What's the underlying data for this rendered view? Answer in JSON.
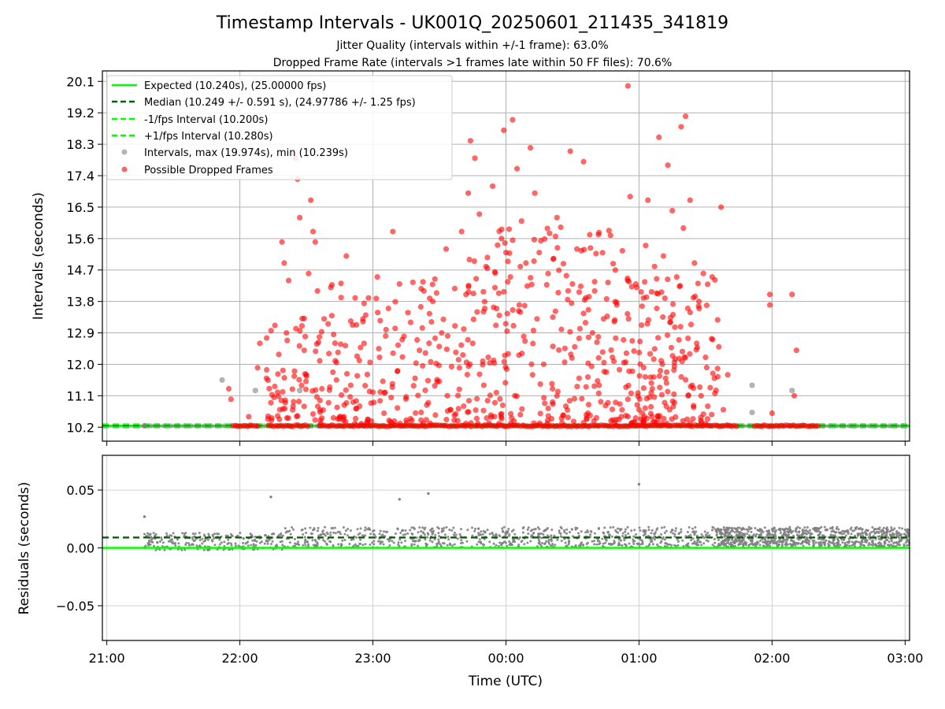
{
  "figure": {
    "title": "Timestamp Intervals - UK001Q_20250601_211435_341819",
    "subtitle_1": "Jitter Quality (intervals within +/-1 frame): 63.0%",
    "subtitle_2": "Dropped Frame Rate (intervals >1 frames late within 50 FF files): 70.6%",
    "colors": {
      "expected": "#00ff00",
      "median": "#006400",
      "interval_points": "#808080",
      "dropped_points": "#ff0000",
      "grid": "#b0b0b0"
    }
  },
  "chart_data": [
    {
      "type": "scatter",
      "name": "intervals",
      "ylabel": "Intervals (seconds)",
      "xlim": [
        "20:58",
        "03:02"
      ],
      "ylim": [
        9.8,
        20.4
      ],
      "y_tick_labels": [
        "10.2",
        "11.1",
        "12.0",
        "12.9",
        "13.8",
        "14.7",
        "15.6",
        "16.5",
        "17.4",
        "18.3",
        "19.2",
        "20.1"
      ],
      "y_ticks": [
        10.2,
        11.1,
        12.0,
        12.9,
        13.8,
        14.7,
        15.6,
        16.5,
        17.4,
        18.3,
        19.2,
        20.1
      ],
      "grid": true,
      "legend_position": "upper-left",
      "lines": [
        {
          "name": "Expected (10.240s), (25.00000 fps)",
          "y": 10.24,
          "style": "solid",
          "color": "#00ff00"
        },
        {
          "name": "Median (10.249 +/- 0.591 s), (24.97786 +/- 1.25 fps)",
          "y": 10.249,
          "style": "dashed",
          "color": "#006400"
        },
        {
          "name": "-1/fps Interval (10.200s)",
          "y": 10.2,
          "style": "dashed",
          "color": "#00ff00"
        },
        {
          "name": "+1/fps Interval (10.280s)",
          "y": 10.28,
          "style": "dashed",
          "color": "#00ff00"
        }
      ],
      "series": [
        {
          "name": "Intervals, max (19.974s), min (10.239s)",
          "color": "#808080",
          "points": [
            [
              "21:17",
              10.24
            ],
            [
              "21:52",
              11.55
            ],
            [
              "22:07",
              11.25
            ],
            [
              "22:27",
              11.25
            ],
            [
              "01:51",
              11.4
            ],
            [
              "01:51",
              10.62
            ],
            [
              "02:09",
              11.25
            ],
            [
              "01:40",
              10.24
            ]
          ]
        },
        {
          "name": "Possible Dropped Frames",
          "color": "#ff0000",
          "points": [
            [
              "21:55",
              11.3
            ],
            [
              "21:56",
              11.0
            ],
            [
              "22:04",
              10.5
            ],
            [
              "22:08",
              11.9
            ],
            [
              "22:09",
              12.6
            ],
            [
              "22:12",
              11.6
            ],
            [
              "22:14",
              10.9
            ],
            [
              "22:17",
              11.2
            ],
            [
              "22:18",
              10.7
            ],
            [
              "22:19",
              15.5
            ],
            [
              "22:20",
              14.9
            ],
            [
              "22:21",
              12.9
            ],
            [
              "22:22",
              14.4
            ],
            [
              "22:24",
              10.8
            ],
            [
              "22:25",
              17.9
            ],
            [
              "22:26",
              17.3
            ],
            [
              "22:27",
              16.2
            ],
            [
              "22:28",
              13.1
            ],
            [
              "22:29",
              12.4
            ],
            [
              "22:30",
              11.7
            ],
            [
              "22:31",
              14.6
            ],
            [
              "22:32",
              16.7
            ],
            [
              "22:33",
              15.8
            ],
            [
              "22:34",
              15.5
            ],
            [
              "22:35",
              14.1
            ],
            [
              "22:36",
              12.1
            ],
            [
              "22:37",
              11.3
            ],
            [
              "22:38",
              13.3
            ],
            [
              "22:40",
              10.9
            ],
            [
              "22:41",
              14.2
            ],
            [
              "22:43",
              12.1
            ],
            [
              "22:45",
              10.5
            ],
            [
              "22:48",
              15.1
            ],
            [
              "22:50",
              11.4
            ],
            [
              "22:52",
              13.9
            ],
            [
              "22:54",
              10.8
            ],
            [
              "22:56",
              12.6
            ],
            [
              "22:58",
              13.9
            ],
            [
              "23:00",
              11.2
            ],
            [
              "23:02",
              14.5
            ],
            [
              "23:03",
              12.2
            ],
            [
              "23:05",
              10.6
            ],
            [
              "23:07",
              13.6
            ],
            [
              "23:09",
              15.8
            ],
            [
              "23:11",
              11.8
            ],
            [
              "23:12",
              14.3
            ],
            [
              "23:14",
              12.8
            ],
            [
              "23:15",
              10.4
            ],
            [
              "23:17",
              13.2
            ],
            [
              "23:19",
              11.6
            ],
            [
              "23:21",
              12.4
            ],
            [
              "23:23",
              14.1
            ],
            [
              "23:25",
              10.9
            ],
            [
              "23:27",
              13.8
            ],
            [
              "23:29",
              11.5
            ],
            [
              "23:31",
              12.9
            ],
            [
              "23:33",
              15.3
            ],
            [
              "23:35",
              10.7
            ],
            [
              "23:37",
              13.1
            ],
            [
              "23:39",
              11.9
            ],
            [
              "23:40",
              15.8
            ],
            [
              "23:42",
              14.0
            ],
            [
              "23:43",
              16.9
            ],
            [
              "23:44",
              18.4
            ],
            [
              "23:45",
              12.6
            ],
            [
              "23:46",
              17.9
            ],
            [
              "23:47",
              13.5
            ],
            [
              "23:48",
              16.3
            ],
            [
              "23:50",
              11.4
            ],
            [
              "23:51",
              14.8
            ],
            [
              "23:52",
              12.2
            ],
            [
              "23:54",
              17.1
            ],
            [
              "23:55",
              10.9
            ],
            [
              "23:57",
              13.4
            ],
            [
              "23:58",
              15.6
            ],
            [
              "23:59",
              18.7
            ],
            [
              "00:00",
              15.2
            ],
            [
              "00:01",
              12.3
            ],
            [
              "00:02",
              14.5
            ],
            [
              "00:03",
              19.0
            ],
            [
              "00:04",
              11.1
            ],
            [
              "00:05",
              17.6
            ],
            [
              "00:06",
              13.7
            ],
            [
              "00:07",
              16.1
            ],
            [
              "00:08",
              12.8
            ],
            [
              "00:09",
              14.9
            ],
            [
              "00:11",
              18.2
            ],
            [
              "00:12",
              11.7
            ],
            [
              "00:13",
              16.9
            ],
            [
              "00:14",
              13.3
            ],
            [
              "00:15",
              15.2
            ],
            [
              "00:17",
              12.0
            ],
            [
              "00:19",
              14.6
            ],
            [
              "00:21",
              11.3
            ],
            [
              "00:23",
              16.2
            ],
            [
              "00:25",
              13.0
            ],
            [
              "00:27",
              10.8
            ],
            [
              "00:29",
              18.1
            ],
            [
              "00:30",
              14.3
            ],
            [
              "00:31",
              12.5
            ],
            [
              "00:32",
              15.3
            ],
            [
              "00:33",
              11.6
            ],
            [
              "00:35",
              17.8
            ],
            [
              "00:36",
              13.9
            ],
            [
              "00:37",
              10.6
            ],
            [
              "00:39",
              12.9
            ],
            [
              "00:40",
              14.1
            ],
            [
              "00:42",
              11.4
            ],
            [
              "00:44",
              13.3
            ],
            [
              "00:46",
              10.9
            ],
            [
              "00:48",
              12.2
            ],
            [
              "00:50",
              13.7
            ],
            [
              "00:52",
              10.5
            ],
            [
              "00:53",
              12.7
            ],
            [
              "00:55",
              11.0
            ],
            [
              "00:56",
              16.8
            ],
            [
              "00:57",
              11.8
            ],
            [
              "00:59",
              14.2
            ],
            [
              "01:00",
              10.7
            ],
            [
              "01:02",
              13.9
            ],
            [
              "01:03",
              15.4
            ],
            [
              "01:04",
              16.7
            ],
            [
              "01:05",
              12.3
            ],
            [
              "01:06",
              11.3
            ],
            [
              "01:07",
              14.8
            ],
            [
              "01:08",
              13.6
            ],
            [
              "01:09",
              18.5
            ],
            [
              "01:10",
              12.1
            ],
            [
              "01:11",
              15.1
            ],
            [
              "01:12",
              11.6
            ],
            [
              "01:13",
              17.7
            ],
            [
              "01:14",
              13.2
            ],
            [
              "01:15",
              16.4
            ],
            [
              "01:16",
              10.9
            ],
            [
              "01:17",
              14.5
            ],
            [
              "01:18",
              12.7
            ],
            [
              "01:19",
              18.8
            ],
            [
              "01:20",
              15.9
            ],
            [
              "01:21",
              19.1
            ],
            [
              "01:22",
              13.6
            ],
            [
              "01:23",
              16.7
            ],
            [
              "01:24",
              11.4
            ],
            [
              "01:25",
              14.9
            ],
            [
              "01:26",
              12.6
            ],
            [
              "01:27",
              13.8
            ],
            [
              "01:28",
              11.1
            ],
            [
              "01:29",
              14.6
            ],
            [
              "01:30",
              12.2
            ],
            [
              "01:31",
              10.8
            ],
            [
              "01:33",
              14.5
            ],
            [
              "01:34",
              11.6
            ],
            [
              "01:36",
              12.5
            ],
            [
              "01:37",
              16.5
            ],
            [
              "01:38",
              10.7
            ],
            [
              "01:40",
              11.7
            ],
            [
              "01:59",
              14.0
            ],
            [
              "01:59",
              13.7
            ],
            [
              "02:00",
              10.6
            ],
            [
              "02:09",
              14.0
            ],
            [
              "02:10",
              11.1
            ],
            [
              "02:11",
              12.4
            ],
            [
              "00:55",
              19.97
            ]
          ]
        }
      ]
    },
    {
      "type": "scatter",
      "name": "residuals",
      "xlabel": "Time (UTC)",
      "ylabel": "Residuals (seconds)",
      "xlim": [
        "20:58",
        "03:02"
      ],
      "ylim": [
        -0.08,
        0.08
      ],
      "x_tick_labels": [
        "21:00",
        "22:00",
        "23:00",
        "00:00",
        "01:00",
        "02:00",
        "03:00"
      ],
      "y_tick_labels": [
        "0.05",
        "0.00",
        "−0.05"
      ],
      "y_ticks": [
        0.05,
        0.0,
        -0.05
      ],
      "grid": true,
      "lines": [
        {
          "name": "expected",
          "y": 0.0,
          "style": "solid",
          "color": "#00ff00"
        },
        {
          "name": "median",
          "y": 0.009,
          "style": "dashed",
          "color": "#006400"
        }
      ],
      "series": [
        {
          "name": "residuals",
          "color": "#808080",
          "highlights": [
            [
              "21:17",
              0.027
            ],
            [
              "22:14",
              0.044
            ],
            [
              "23:12",
              0.042
            ],
            [
              "23:25",
              0.047
            ],
            [
              "01:00",
              0.055
            ]
          ],
          "regions": [
            {
              "start": "21:17",
              "end": "22:20",
              "low": -0.002,
              "high": 0.013
            },
            {
              "start": "22:20",
              "end": "01:45",
              "low": 0.0,
              "high": 0.018
            },
            {
              "start": "01:35",
              "end": "03:02",
              "low": 0.001,
              "high": 0.018
            }
          ]
        }
      ]
    }
  ]
}
